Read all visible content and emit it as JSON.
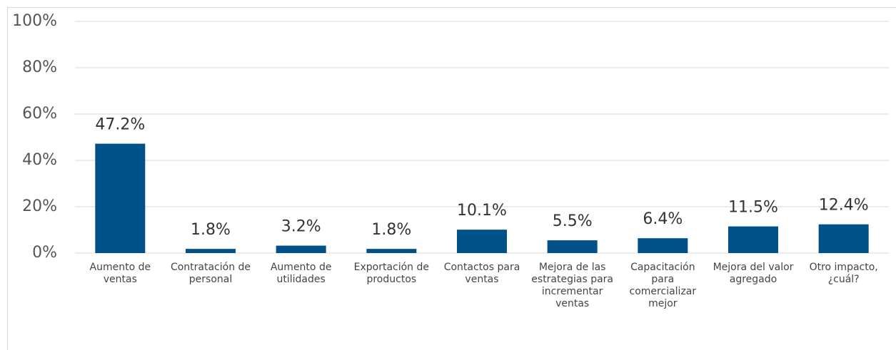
{
  "chart_data": {
    "type": "bar",
    "categories": [
      "Aumento de ventas",
      "Contratación de personal",
      "Aumento de utilidades",
      "Exportación de productos",
      "Contactos para ventas",
      "Mejora de las estrategias para incrementar ventas",
      "Capacitación para comercializar mejor",
      "Mejora del valor agregado",
      "Otro impacto, ¿cuál?"
    ],
    "values": [
      47.2,
      1.8,
      3.2,
      1.8,
      10.1,
      5.5,
      6.4,
      11.5,
      12.4
    ],
    "value_labels": [
      "47.2%",
      "1.8%",
      "3.2%",
      "1.8%",
      "10.1%",
      "5.5%",
      "6.4%",
      "11.5%",
      "12.4%"
    ],
    "color": "#00508a",
    "ylim": [
      0,
      100
    ],
    "yticks": [
      {
        "value": 0,
        "label": "0%"
      },
      {
        "value": 20,
        "label": "20%"
      },
      {
        "value": 40,
        "label": "40%"
      },
      {
        "value": 60,
        "label": "60%"
      },
      {
        "value": 80,
        "label": "80%"
      },
      {
        "value": 100,
        "label": "100%"
      }
    ],
    "grid": true
  }
}
